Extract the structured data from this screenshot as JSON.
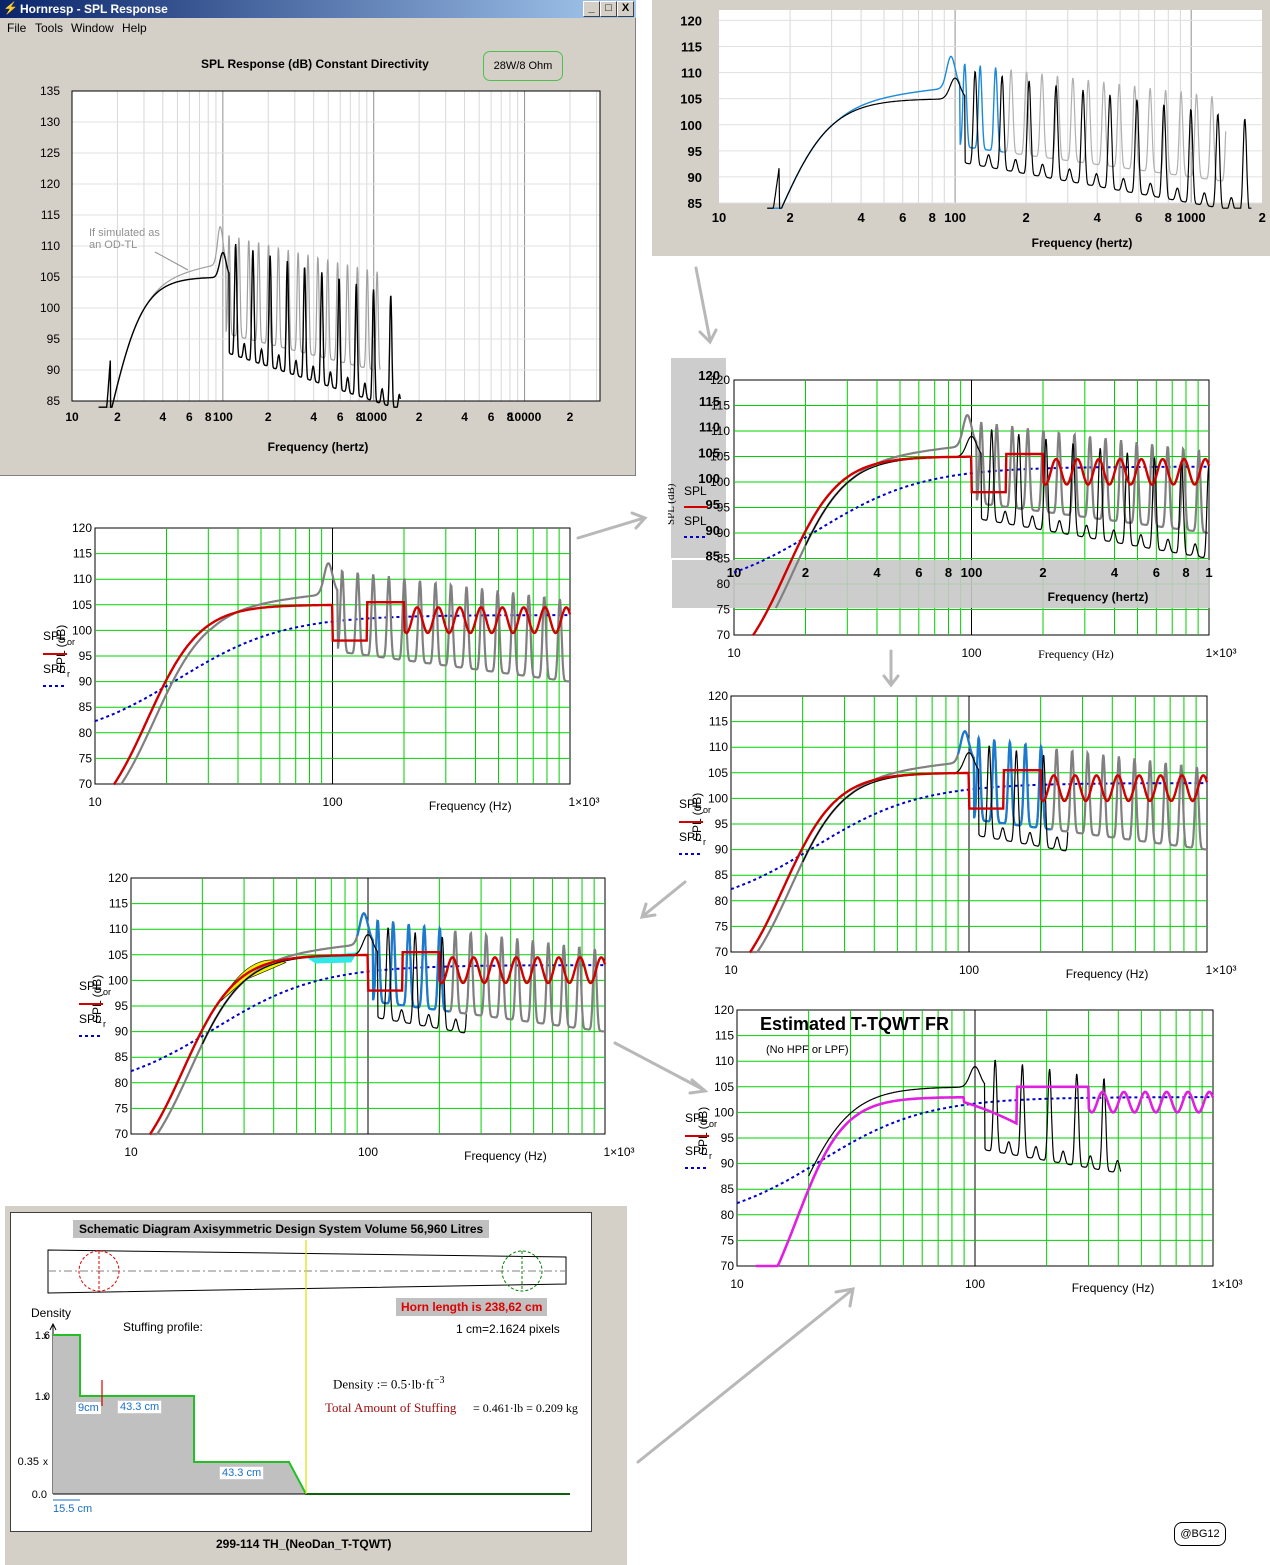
{
  "window": {
    "title": "Hornresp - SPL Response",
    "menu": [
      "File",
      "Tools",
      "Window",
      "Help"
    ],
    "controls": [
      "_",
      "□",
      "X"
    ],
    "chart_heading": "SPL Response (dB)   Constant Directivity",
    "power_badge": "28W/8 Ohm",
    "annotation": "If simulated as an OD-TL",
    "annotation_line1": "If simulated as",
    "annotation_line2": "an OD-TL",
    "xlabel": "Frequency (hertz)",
    "y_ticks": [
      "135",
      "130",
      "125",
      "120",
      "115",
      "110",
      "105",
      "100",
      "95",
      "90",
      "85"
    ],
    "x_ticks": [
      "10",
      "2",
      "4",
      "6",
      "8",
      "100",
      "2",
      "4",
      "6",
      "8",
      "1000",
      "2",
      "4",
      "6",
      "8",
      "10000",
      "2"
    ]
  },
  "top_right_chart": {
    "y_ticks": [
      "120",
      "115",
      "110",
      "105",
      "100",
      "95",
      "90",
      "85"
    ],
    "x_ticks": [
      "10",
      "2",
      "4",
      "6",
      "8",
      "100",
      "2",
      "4",
      "6",
      "8",
      "1000",
      "2"
    ],
    "xlabel": "Frequency (hertz)"
  },
  "mathcad": {
    "ylabel": "SPL (dB)",
    "legend1": "SPL",
    "legend1_sub": "or",
    "legend2": "SPL",
    "legend2_sub": "r",
    "xlabel": "Frequency (Hz)",
    "x_ticks": [
      "10",
      "100",
      "1×10³"
    ],
    "y_ticks": [
      "120",
      "115",
      "110",
      "105",
      "100",
      "95",
      "90",
      "85",
      "80",
      "75",
      "70"
    ]
  },
  "overlay_chart": {
    "y_ticks": [
      "120",
      "115",
      "110",
      "105",
      "100",
      "95",
      "90",
      "85"
    ],
    "x_ticks": [
      "10",
      "2",
      "4",
      "6",
      "8",
      "100",
      "2",
      "4",
      "6",
      "8",
      "1"
    ],
    "xlabel": "Frequency (hertz)"
  },
  "estimate": {
    "title": "Estimated T-TQWT FR",
    "subtitle": "(No HPF or LPF)"
  },
  "schematic": {
    "header": "Schematic Diagram   Axisymmetric Design   System Volume 56,960 Litres",
    "horn_length": "Horn length is 238,62 cm",
    "scale": "1 cm=2.1624 pixels",
    "density_label": "Density",
    "stuffing_label": "Stuffing profile:",
    "y_ticks": [
      "1.6",
      "1.0",
      "0.35",
      "0.0"
    ],
    "seg1": "9cm",
    "seg2": "43.3 cm",
    "seg3": "43.3 cm",
    "seg4": "15.5 cm",
    "density_formula": "Density := 0.5·lb·ft",
    "density_exp": "−3",
    "total_label": "Total Amount of Stuffing",
    "total_value": "= 0.461·lb = 0.209 kg",
    "footer": "299-114 TH_(NeoDan_T-TQWT)"
  },
  "copyright": "@BG12",
  "colors": {
    "grid_green": "#00d000",
    "red_curve": "#d00000",
    "blue_dotted": "#0000c8",
    "gray_curve": "#808080",
    "blue_curve": "#1a7ad0",
    "magenta": "#e020e0",
    "arrow": "#c0c0c0"
  }
}
